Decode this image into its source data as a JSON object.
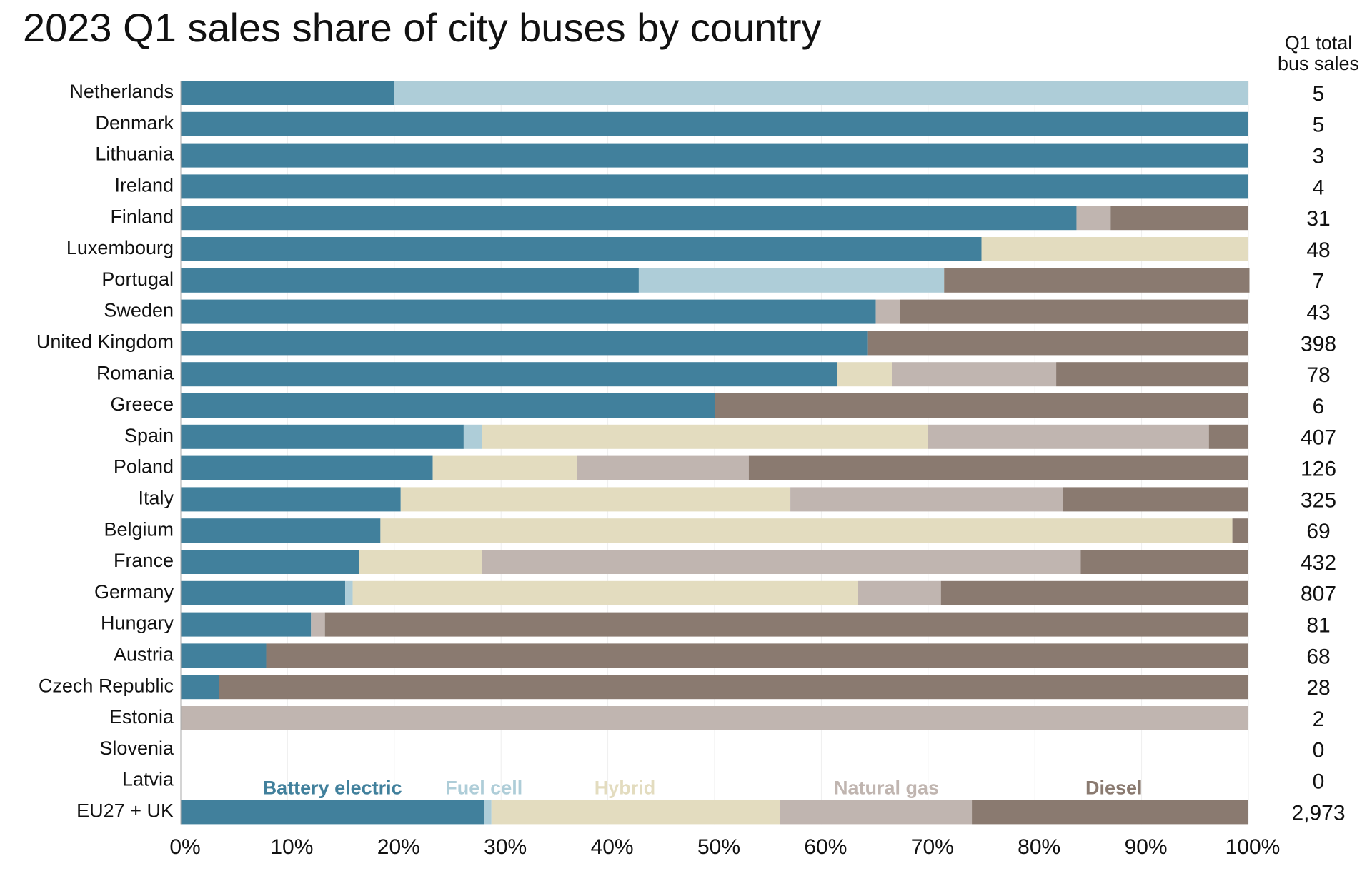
{
  "chart_data": {
    "type": "stacked_barh",
    "title": "2023 Q1 sales share of city buses by country",
    "categories": [
      "Netherlands",
      "Denmark",
      "Lithuania",
      "Ireland",
      "Finland",
      "Luxembourg",
      "Portugal",
      "Sweden",
      "United Kingdom",
      "Romania",
      "Greece",
      "Spain",
      "Poland",
      "Italy",
      "Belgium",
      "France",
      "Germany",
      "Hungary",
      "Austria",
      "Czech Republic",
      "Estonia",
      "Slovenia",
      "Latvia",
      "EU27 + UK"
    ],
    "series": [
      {
        "name": "Battery electric",
        "color": "#41809c",
        "values": [
          20,
          100,
          100,
          100,
          83.9,
          75,
          42.9,
          65.1,
          64.3,
          61.5,
          50,
          26.5,
          23.6,
          20.6,
          18.7,
          16.7,
          15.4,
          12.2,
          8,
          3.6,
          0,
          0,
          0,
          28.4
        ]
      },
      {
        "name": "Fuel cell",
        "color": "#aecdd8",
        "values": [
          80,
          0,
          0,
          0,
          0,
          0,
          28.6,
          0,
          0,
          0,
          0,
          1.7,
          0,
          0,
          0,
          0,
          0.7,
          0,
          0,
          0,
          0,
          0,
          0,
          0.7
        ]
      },
      {
        "name": "Hybrid",
        "color": "#e3dcbf",
        "values": [
          0,
          0,
          0,
          0,
          0,
          25,
          0,
          0,
          0,
          5.1,
          0,
          41.8,
          13.5,
          36.5,
          79.8,
          11.5,
          47.3,
          0,
          0,
          0,
          0,
          0,
          0,
          27
        ]
      },
      {
        "name": "Natural gas",
        "color": "#c0b5b0",
        "values": [
          0,
          0,
          0,
          0,
          3.2,
          0,
          0,
          2.3,
          0,
          15.4,
          0,
          26.3,
          16.1,
          25.5,
          0,
          56.1,
          7.8,
          1.3,
          0,
          0,
          100,
          0,
          0,
          18
        ]
      },
      {
        "name": "Diesel",
        "color": "#8a7a70",
        "values": [
          0,
          0,
          0,
          0,
          12.9,
          0,
          28.6,
          32.6,
          35.7,
          18,
          50,
          3.7,
          46.8,
          17.4,
          1.5,
          15.7,
          28.8,
          86.5,
          92,
          96.4,
          0,
          0,
          0,
          25.9
        ]
      }
    ],
    "totals_header": [
      "Q1 total",
      "bus sales"
    ],
    "totals": {
      "values": [
        5,
        5,
        3,
        4,
        31,
        48,
        7,
        43,
        398,
        78,
        6,
        407,
        126,
        325,
        69,
        432,
        807,
        81,
        68,
        28,
        2,
        0,
        0,
        2973
      ],
      "value_labels": [
        "5",
        "5",
        "3",
        "4",
        "31",
        "48",
        "7",
        "43",
        "398",
        "78",
        "6",
        "407",
        "126",
        "325",
        "69",
        "432",
        "807",
        "81",
        "68",
        "28",
        "2",
        "0",
        "0",
        "2,973"
      ]
    },
    "xlim": [
      0,
      100
    ],
    "xticks": [
      {
        "value": 0,
        "label": "0%"
      },
      {
        "value": 10,
        "label": "10%"
      },
      {
        "value": 20,
        "label": "20%"
      },
      {
        "value": 30,
        "label": "30%"
      },
      {
        "value": 40,
        "label": "40%"
      },
      {
        "value": 50,
        "label": "50%"
      },
      {
        "value": 60,
        "label": "60%"
      },
      {
        "value": 70,
        "label": "70%"
      },
      {
        "value": 80,
        "label": "80%"
      },
      {
        "value": 90,
        "label": "90%"
      },
      {
        "value": 100,
        "label": "100%"
      }
    ],
    "grid": true
  }
}
